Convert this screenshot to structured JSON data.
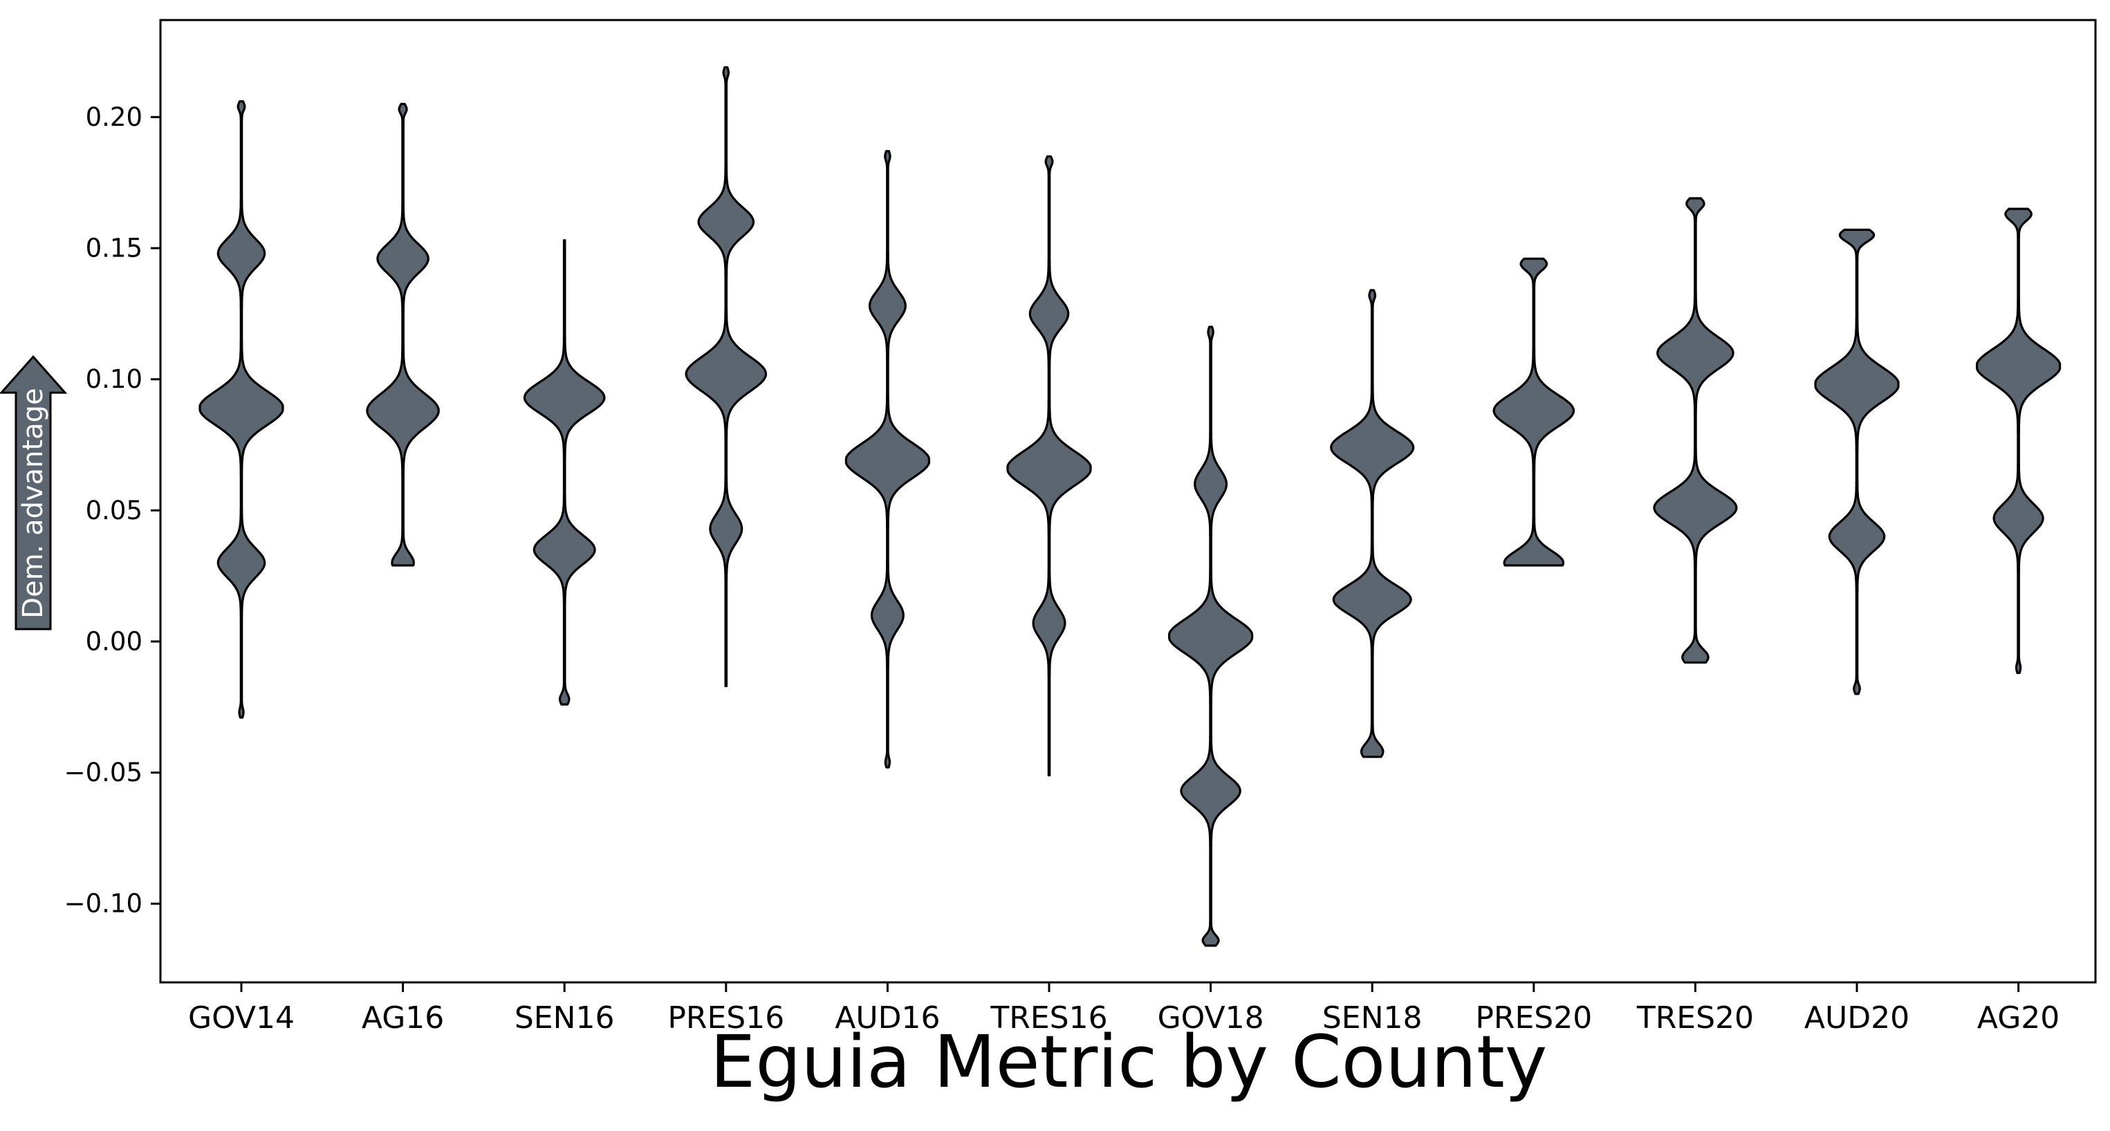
{
  "chart_data": {
    "type": "violin",
    "xlabel": "Eguia Metric by County",
    "ylabel": "Dem. advantage",
    "ylim": [
      -0.13,
      0.237
    ],
    "yticks": [
      0.2,
      0.15,
      0.1,
      0.05,
      0.0,
      -0.05,
      -0.1
    ],
    "ytick_labels": [
      "0.20",
      "0.15",
      "0.10",
      "0.05",
      "0.00",
      "−0.05",
      "−0.10"
    ],
    "categories": [
      "GOV14",
      "AG16",
      "SEN16",
      "PRES16",
      "AUD16",
      "TRES16",
      "GOV18",
      "SEN18",
      "PRES20",
      "TRES20",
      "AUD20",
      "AG20"
    ],
    "fill_color": "#5b6670",
    "edge_color": "#000000",
    "violins": [
      {
        "category": "GOV14",
        "min": -0.029,
        "max": 0.206,
        "modes": [
          {
            "y": 0.148,
            "w": 0.55,
            "s": 0.0055
          },
          {
            "y": 0.089,
            "w": 1.0,
            "s": 0.0065
          },
          {
            "y": 0.03,
            "w": 0.55,
            "s": 0.0055
          },
          {
            "y": 0.204,
            "w": 0.07,
            "s": 0.0015
          },
          {
            "y": -0.027,
            "w": 0.04,
            "s": 0.0015
          }
        ]
      },
      {
        "category": "AG16",
        "min": 0.029,
        "max": 0.205,
        "modes": [
          {
            "y": 0.146,
            "w": 0.6,
            "s": 0.0055
          },
          {
            "y": 0.088,
            "w": 0.85,
            "s": 0.0065
          },
          {
            "y": 0.03,
            "w": 0.25,
            "s": 0.0035
          },
          {
            "y": 0.203,
            "w": 0.08,
            "s": 0.0015
          }
        ]
      },
      {
        "category": "SEN16",
        "min": -0.024,
        "max": 0.153,
        "modes": [
          {
            "y": 0.093,
            "w": 0.95,
            "s": 0.006
          },
          {
            "y": 0.035,
            "w": 0.72,
            "s": 0.0055
          },
          {
            "y": -0.022,
            "w": 0.1,
            "s": 0.002
          }
        ]
      },
      {
        "category": "PRES16",
        "min": -0.017,
        "max": 0.219,
        "modes": [
          {
            "y": 0.16,
            "w": 0.65,
            "s": 0.0055
          },
          {
            "y": 0.102,
            "w": 0.95,
            "s": 0.0065
          },
          {
            "y": 0.043,
            "w": 0.37,
            "s": 0.0055
          },
          {
            "y": 0.217,
            "w": 0.05,
            "s": 0.0015
          }
        ]
      },
      {
        "category": "AUD16",
        "min": -0.048,
        "max": 0.187,
        "modes": [
          {
            "y": 0.128,
            "w": 0.42,
            "s": 0.0055
          },
          {
            "y": 0.069,
            "w": 1.0,
            "s": 0.0065
          },
          {
            "y": 0.01,
            "w": 0.37,
            "s": 0.0055
          },
          {
            "y": 0.185,
            "w": 0.05,
            "s": 0.0015
          },
          {
            "y": -0.046,
            "w": 0.04,
            "s": 0.0015
          }
        ]
      },
      {
        "category": "TRES16",
        "min": -0.051,
        "max": 0.185,
        "modes": [
          {
            "y": 0.125,
            "w": 0.45,
            "s": 0.0055
          },
          {
            "y": 0.066,
            "w": 1.0,
            "s": 0.0065
          },
          {
            "y": 0.007,
            "w": 0.37,
            "s": 0.0055
          },
          {
            "y": 0.183,
            "w": 0.07,
            "s": 0.0015
          }
        ]
      },
      {
        "category": "GOV18",
        "min": -0.116,
        "max": 0.12,
        "modes": [
          {
            "y": 0.06,
            "w": 0.37,
            "s": 0.0055
          },
          {
            "y": 0.002,
            "w": 1.0,
            "s": 0.0065
          },
          {
            "y": -0.057,
            "w": 0.7,
            "s": 0.0055
          },
          {
            "y": -0.114,
            "w": 0.18,
            "s": 0.002
          },
          {
            "y": 0.118,
            "w": 0.05,
            "s": 0.0015
          }
        ]
      },
      {
        "category": "SEN18",
        "min": -0.044,
        "max": 0.134,
        "modes": [
          {
            "y": 0.074,
            "w": 0.98,
            "s": 0.006
          },
          {
            "y": 0.016,
            "w": 0.92,
            "s": 0.0055
          },
          {
            "y": -0.042,
            "w": 0.25,
            "s": 0.003
          },
          {
            "y": 0.132,
            "w": 0.06,
            "s": 0.0015
          }
        ]
      },
      {
        "category": "PRES20",
        "min": 0.029,
        "max": 0.146,
        "modes": [
          {
            "y": 0.088,
            "w": 0.95,
            "s": 0.006
          },
          {
            "y": 0.03,
            "w": 0.7,
            "s": 0.0045
          },
          {
            "y": 0.144,
            "w": 0.3,
            "s": 0.0025
          }
        ]
      },
      {
        "category": "TRES20",
        "min": -0.008,
        "max": 0.169,
        "modes": [
          {
            "y": 0.11,
            "w": 0.9,
            "s": 0.006
          },
          {
            "y": 0.051,
            "w": 0.98,
            "s": 0.006
          },
          {
            "y": -0.006,
            "w": 0.3,
            "s": 0.003
          },
          {
            "y": 0.167,
            "w": 0.2,
            "s": 0.002
          }
        ]
      },
      {
        "category": "AUD20",
        "min": -0.02,
        "max": 0.157,
        "modes": [
          {
            "y": 0.098,
            "w": 1.0,
            "s": 0.0065
          },
          {
            "y": 0.04,
            "w": 0.65,
            "s": 0.0055
          },
          {
            "y": 0.155,
            "w": 0.4,
            "s": 0.0025
          },
          {
            "y": -0.018,
            "w": 0.06,
            "s": 0.0015
          }
        ]
      },
      {
        "category": "AG20",
        "min": -0.012,
        "max": 0.165,
        "modes": [
          {
            "y": 0.105,
            "w": 1.0,
            "s": 0.0065
          },
          {
            "y": 0.047,
            "w": 0.58,
            "s": 0.0055
          },
          {
            "y": 0.163,
            "w": 0.3,
            "s": 0.0025
          },
          {
            "y": -0.01,
            "w": 0.04,
            "s": 0.0015
          }
        ]
      }
    ]
  }
}
